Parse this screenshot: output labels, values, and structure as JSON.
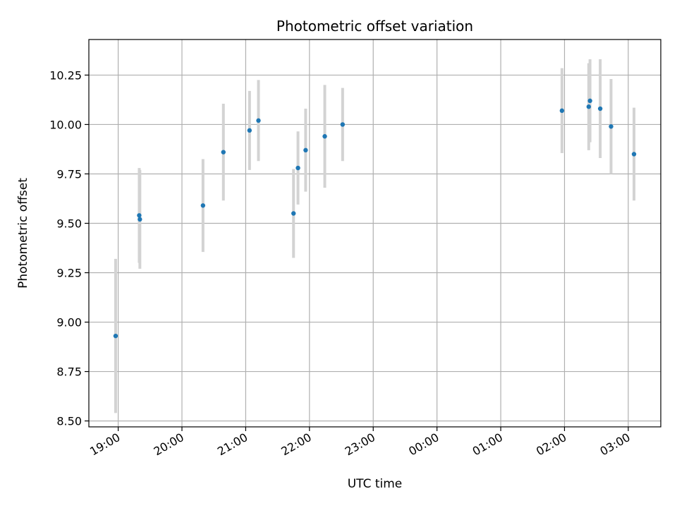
{
  "chart_data": {
    "type": "scatter",
    "title": "Photometric offset variation",
    "xlabel": "UTC time",
    "ylabel": "Photometric offset",
    "x_tick_labels": [
      "19:00",
      "20:00",
      "21:00",
      "22:00",
      "23:00",
      "00:00",
      "01:00",
      "02:00",
      "03:00"
    ],
    "x_tick_hours": [
      19,
      20,
      21,
      22,
      23,
      24,
      25,
      26,
      27
    ],
    "xlim_hours": [
      18.54,
      27.51
    ],
    "y_ticks": [
      8.5,
      8.75,
      9.0,
      9.25,
      9.5,
      9.75,
      10.0,
      10.25
    ],
    "y_tick_labels": [
      "8.50",
      "8.75",
      "9.00",
      "9.25",
      "9.50",
      "9.75",
      "10.00",
      "10.25"
    ],
    "ylim": [
      8.47,
      10.43
    ],
    "grid": true,
    "colors": {
      "point": "#1f77b4",
      "errorbar": "#d3d3d3",
      "grid": "#b0b0b0"
    },
    "series": [
      {
        "points": [
          {
            "t": 18.96,
            "y": 8.93,
            "err": 0.39
          },
          {
            "t": 19.33,
            "y": 9.54,
            "err": 0.24
          },
          {
            "t": 19.34,
            "y": 9.52,
            "err": 0.25
          },
          {
            "t": 20.33,
            "y": 9.59,
            "err": 0.235
          },
          {
            "t": 20.65,
            "y": 9.86,
            "err": 0.245
          },
          {
            "t": 21.06,
            "y": 9.97,
            "err": 0.2
          },
          {
            "t": 21.2,
            "y": 10.02,
            "err": 0.205
          },
          {
            "t": 21.75,
            "y": 9.55,
            "err": 0.225
          },
          {
            "t": 21.82,
            "y": 9.78,
            "err": 0.185
          },
          {
            "t": 21.94,
            "y": 9.87,
            "err": 0.21
          },
          {
            "t": 22.24,
            "y": 9.94,
            "err": 0.26
          },
          {
            "t": 22.52,
            "y": 10.0,
            "err": 0.185
          },
          {
            "t": 25.96,
            "y": 10.07,
            "err": 0.215
          },
          {
            "t": 26.38,
            "y": 10.09,
            "err": 0.22
          },
          {
            "t": 26.4,
            "y": 10.12,
            "err": 0.21
          },
          {
            "t": 26.56,
            "y": 10.08,
            "err": 0.25
          },
          {
            "t": 26.73,
            "y": 9.99,
            "err": 0.24
          },
          {
            "t": 27.09,
            "y": 9.85,
            "err": 0.235
          }
        ]
      }
    ]
  }
}
